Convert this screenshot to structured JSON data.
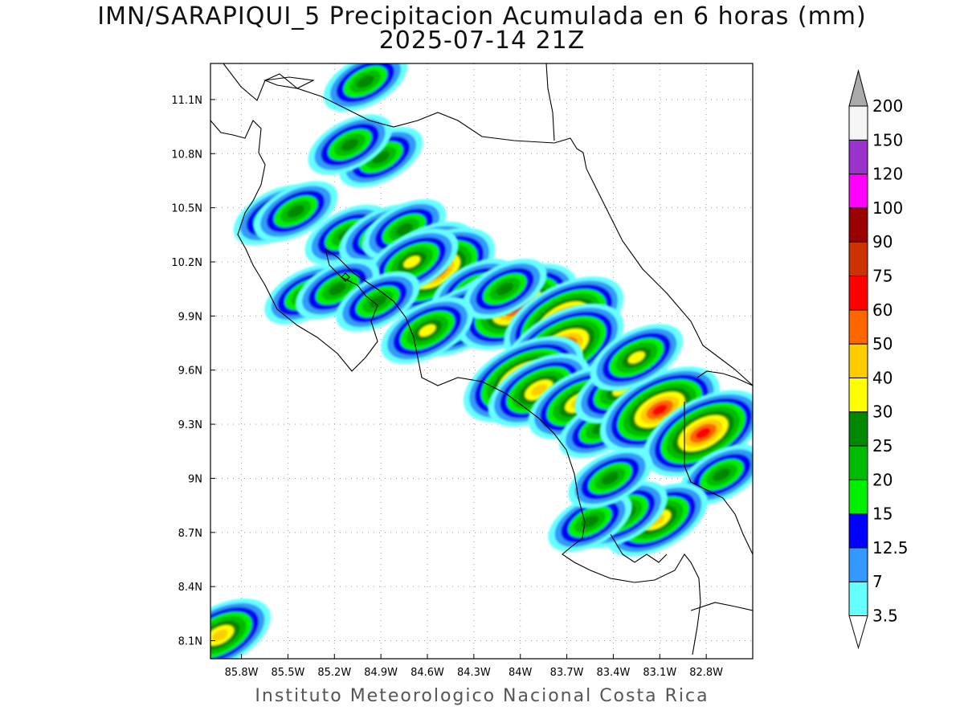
{
  "title": {
    "line1": "IMN/SARAPIQUI_5 Precipitacion Acumulada en 6 horas (mm)",
    "line2": "2025-07-14 21Z"
  },
  "footer": "Instituto Meteorologico Nacional Costa Rica",
  "map": {
    "lon_range": [
      -86.0,
      -82.5
    ],
    "lat_range": [
      8.0,
      11.3
    ],
    "x_ticks": [
      {
        "value": -85.8,
        "label": "85.8W"
      },
      {
        "value": -85.5,
        "label": "85.5W"
      },
      {
        "value": -85.2,
        "label": "85.2W"
      },
      {
        "value": -84.9,
        "label": "84.9W"
      },
      {
        "value": -84.6,
        "label": "84.6W"
      },
      {
        "value": -84.3,
        "label": "84.3W"
      },
      {
        "value": -84.0,
        "label": "84W"
      },
      {
        "value": -83.7,
        "label": "83.7W"
      },
      {
        "value": -83.4,
        "label": "83.4W"
      },
      {
        "value": -83.1,
        "label": "83.1W"
      },
      {
        "value": -82.8,
        "label": "82.8W"
      }
    ],
    "y_ticks": [
      {
        "value": 8.1,
        "label": "8.1N"
      },
      {
        "value": 8.4,
        "label": "8.4N"
      },
      {
        "value": 8.7,
        "label": "8.7N"
      },
      {
        "value": 9.0,
        "label": "9N"
      },
      {
        "value": 9.3,
        "label": "9.3N"
      },
      {
        "value": 9.6,
        "label": "9.6N"
      },
      {
        "value": 9.9,
        "label": "9.9N"
      },
      {
        "value": 10.2,
        "label": "10.2N"
      },
      {
        "value": 10.5,
        "label": "10.5N"
      },
      {
        "value": 10.8,
        "label": "10.8N"
      },
      {
        "value": 11.1,
        "label": "11.1N"
      }
    ],
    "grid": "dotted"
  },
  "colorbar": {
    "labels": [
      "3.5",
      "7",
      "12.5",
      "15",
      "20",
      "25",
      "30",
      "40",
      "50",
      "60",
      "75",
      "90",
      "100",
      "120",
      "150",
      "200"
    ],
    "colors": [
      "#66ffff",
      "#3399ff",
      "#0000ff",
      "#00ee00",
      "#00bb00",
      "#008800",
      "#ffff00",
      "#ffcc00",
      "#ff6600",
      "#ff0000",
      "#cc3300",
      "#990000",
      "#ff00ff",
      "#9933cc",
      "#f5f5f5",
      "#aaaaaa"
    ]
  },
  "precip_cells": [
    {
      "lon": -85.94,
      "lat": 8.13,
      "peak": 40
    },
    {
      "lon": -85.58,
      "lat": 10.46,
      "peak": 25
    },
    {
      "lon": -85.45,
      "lat": 10.48,
      "peak": 25
    },
    {
      "lon": -85.12,
      "lat": 10.35,
      "peak": 25
    },
    {
      "lon": -84.9,
      "lat": 10.35,
      "peak": 25
    },
    {
      "lon": -84.75,
      "lat": 10.38,
      "peak": 25
    },
    {
      "lon": -84.62,
      "lat": 10.22,
      "peak": 40
    },
    {
      "lon": -84.55,
      "lat": 10.15,
      "peak": 60
    },
    {
      "lon": -84.7,
      "lat": 10.2,
      "peak": 30
    },
    {
      "lon": -84.3,
      "lat": 10.05,
      "peak": 25
    },
    {
      "lon": -84.2,
      "lat": 9.98,
      "peak": 30
    },
    {
      "lon": -84.38,
      "lat": 9.88,
      "peak": 40
    },
    {
      "lon": -84.02,
      "lat": 9.95,
      "peak": 60
    },
    {
      "lon": -84.1,
      "lat": 10.05,
      "peak": 25
    },
    {
      "lon": -83.72,
      "lat": 9.88,
      "peak": 60
    },
    {
      "lon": -83.72,
      "lat": 9.73,
      "peak": 60
    },
    {
      "lon": -84.6,
      "lat": 9.82,
      "peak": 30
    },
    {
      "lon": -83.98,
      "lat": 9.55,
      "peak": 60
    },
    {
      "lon": -83.88,
      "lat": 9.49,
      "peak": 40
    },
    {
      "lon": -83.62,
      "lat": 9.42,
      "peak": 40
    },
    {
      "lon": -83.48,
      "lat": 9.28,
      "peak": 25
    },
    {
      "lon": -83.35,
      "lat": 9.49,
      "peak": 30
    },
    {
      "lon": -83.1,
      "lat": 9.38,
      "peak": 60
    },
    {
      "lon": -82.82,
      "lat": 9.25,
      "peak": 60
    },
    {
      "lon": -82.7,
      "lat": 9.02,
      "peak": 25
    },
    {
      "lon": -83.12,
      "lat": 8.77,
      "peak": 40
    },
    {
      "lon": -83.35,
      "lat": 8.8,
      "peak": 30
    },
    {
      "lon": -83.55,
      "lat": 8.76,
      "peak": 25
    },
    {
      "lon": -84.9,
      "lat": 10.78,
      "peak": 25
    },
    {
      "lon": -85.1,
      "lat": 10.85,
      "peak": 25
    },
    {
      "lon": -85.0,
      "lat": 11.2,
      "peak": 25
    },
    {
      "lon": -85.38,
      "lat": 10.02,
      "peak": 25
    },
    {
      "lon": -85.18,
      "lat": 10.05,
      "peak": 25
    },
    {
      "lon": -84.92,
      "lat": 9.98,
      "peak": 25
    },
    {
      "lon": -83.25,
      "lat": 9.67,
      "peak": 30
    },
    {
      "lon": -83.42,
      "lat": 9.0,
      "peak": 25
    }
  ]
}
